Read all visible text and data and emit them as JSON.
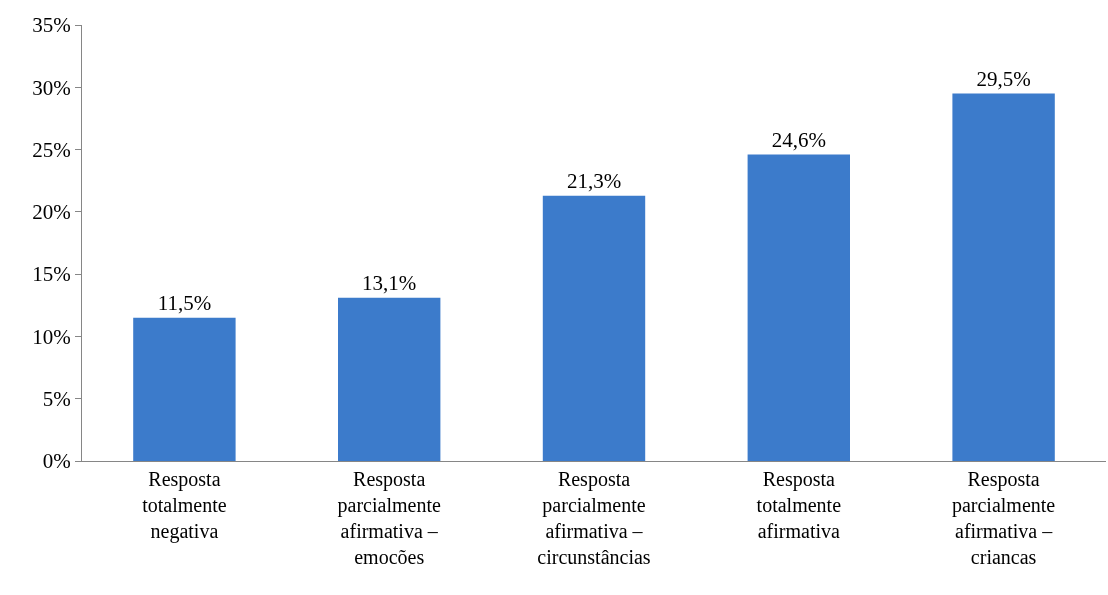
{
  "chart_data": {
    "type": "bar",
    "categories": [
      "Resposta totalmente negativa",
      "Resposta parcialmente afirmativa – emocões",
      "Resposta parcialmente afirmativa – circunstâncias",
      "Resposta totalmente afirmativa",
      "Resposta parcialmente afirmativa – criancas"
    ],
    "values": [
      11.5,
      13.1,
      21.3,
      24.6,
      29.5
    ],
    "value_labels": [
      "11,5%",
      "13,1%",
      "21,3%",
      "24,6%",
      "29,5%"
    ],
    "color": "#3c7bcb",
    "ylim": [
      0,
      35
    ],
    "yticks": [
      {
        "value": 0,
        "label": "0%"
      },
      {
        "value": 5,
        "label": "5%"
      },
      {
        "value": 10,
        "label": "10%"
      },
      {
        "value": 15,
        "label": "15%"
      },
      {
        "value": 20,
        "label": "20%"
      },
      {
        "value": 25,
        "label": "25%"
      },
      {
        "value": 30,
        "label": "30%"
      },
      {
        "value": 35,
        "label": "35%"
      }
    ],
    "grid": false
  }
}
